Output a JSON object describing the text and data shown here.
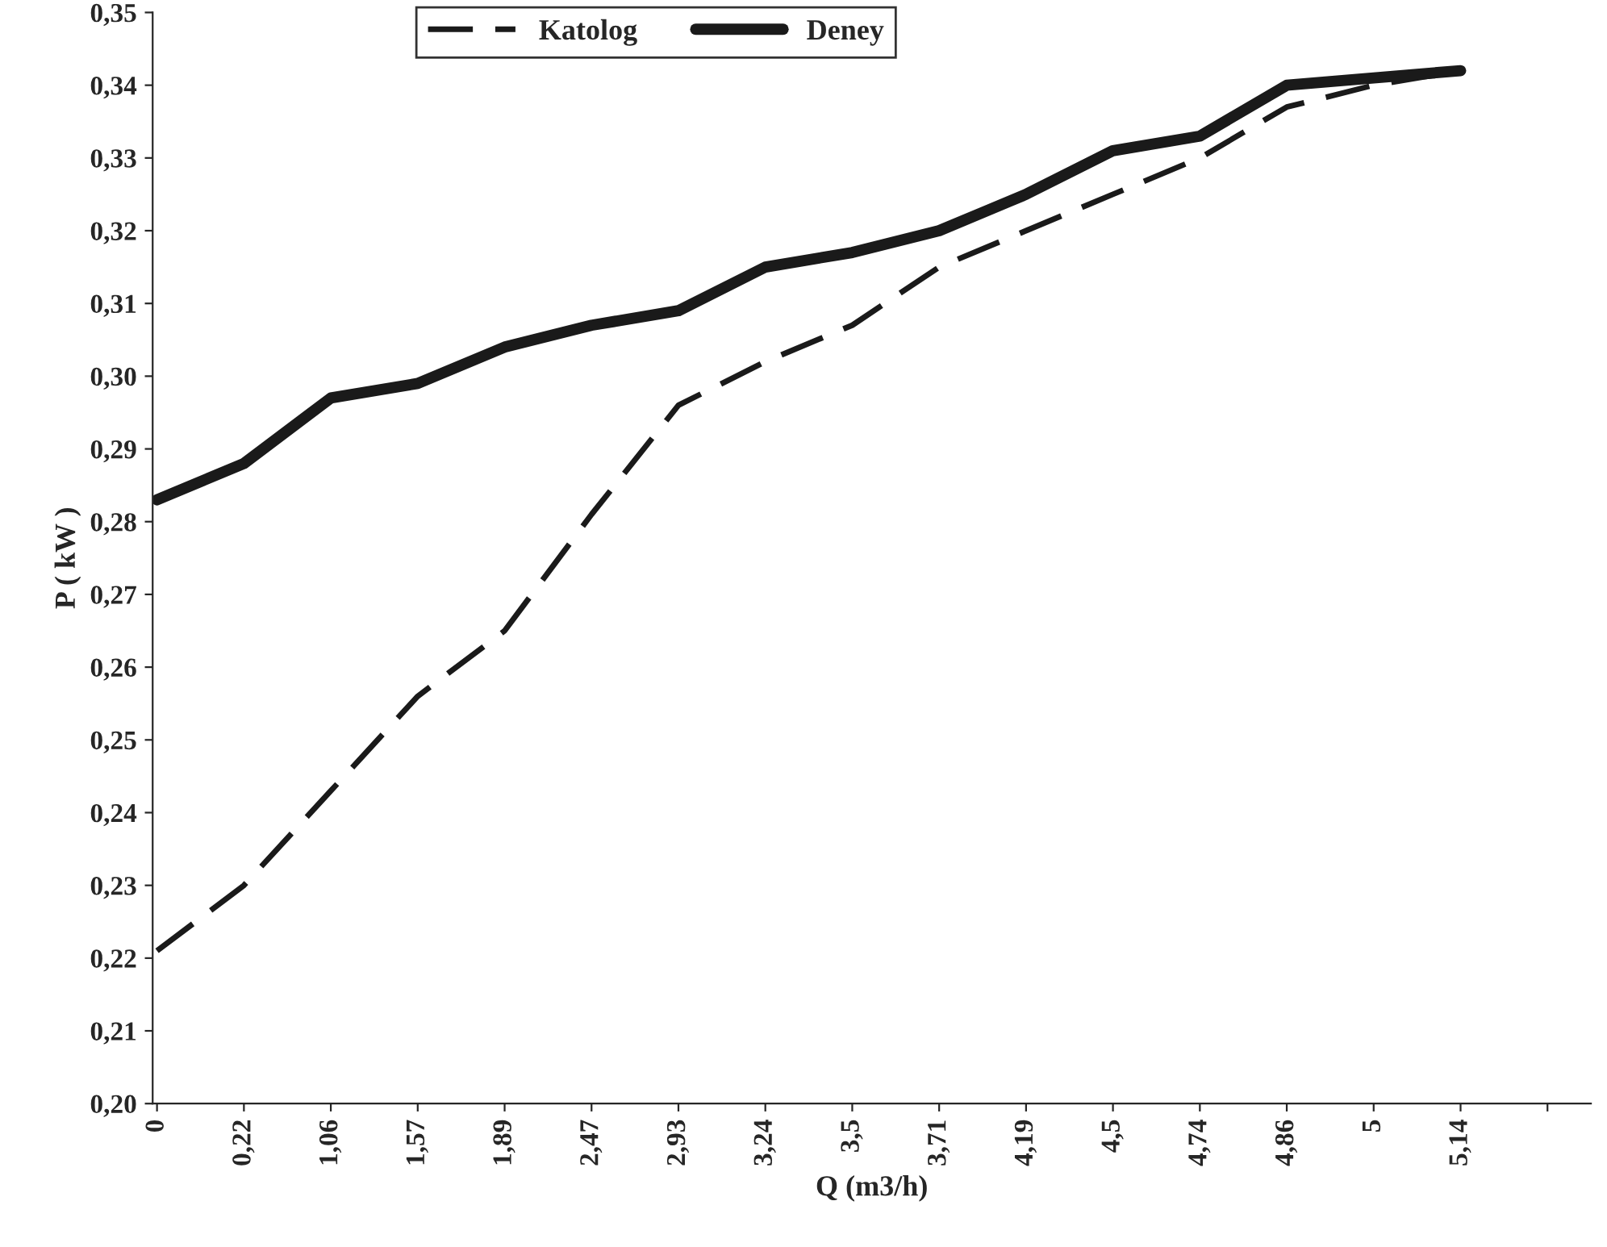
{
  "chart_data": {
    "type": "line",
    "xlabel": "Q (m3/h)",
    "ylabel": "P ( kW )",
    "categories": [
      "0",
      "0,22",
      "1,06",
      "1,57",
      "1,89",
      "2,47",
      "2,93",
      "3,24",
      "3,5",
      "3,71",
      "4,19",
      "4,5",
      "4,74",
      "4,86",
      "5",
      "5,14",
      null
    ],
    "series": [
      {
        "name": "Katolog",
        "color": "#1a1a1a",
        "line_style": "dashed",
        "values": [
          0.221,
          0.23,
          0.243,
          0.256,
          0.265,
          0.281,
          0.296,
          0.302,
          0.307,
          0.315,
          0.32,
          0.325,
          0.33,
          0.337,
          0.34,
          0.342,
          null
        ]
      },
      {
        "name": "Deney",
        "color": "#1a1a1a",
        "line_style": "solid",
        "values": [
          0.283,
          0.288,
          0.297,
          0.299,
          0.304,
          0.307,
          0.309,
          0.315,
          0.317,
          0.32,
          0.325,
          0.331,
          0.333,
          0.34,
          0.341,
          0.342,
          null
        ]
      }
    ],
    "ylim": [
      0.2,
      0.35
    ],
    "yticks": [
      {
        "value": 0.2,
        "label": "0,20"
      },
      {
        "value": 0.21,
        "label": "0,21"
      },
      {
        "value": 0.22,
        "label": "0,22"
      },
      {
        "value": 0.23,
        "label": "0,23"
      },
      {
        "value": 0.24,
        "label": "0,24"
      },
      {
        "value": 0.25,
        "label": "0,25"
      },
      {
        "value": 0.26,
        "label": "0,26"
      },
      {
        "value": 0.27,
        "label": "0,27"
      },
      {
        "value": 0.28,
        "label": "0,28"
      },
      {
        "value": 0.29,
        "label": "0,29"
      },
      {
        "value": 0.3,
        "label": "0,30"
      },
      {
        "value": 0.31,
        "label": "0,31"
      },
      {
        "value": 0.32,
        "label": "0,32"
      },
      {
        "value": 0.33,
        "label": "0,33"
      },
      {
        "value": 0.34,
        "label": "0,34"
      },
      {
        "value": 0.35,
        "label": "0,35"
      }
    ],
    "grid": false,
    "legend": "top",
    "marker": "none"
  }
}
